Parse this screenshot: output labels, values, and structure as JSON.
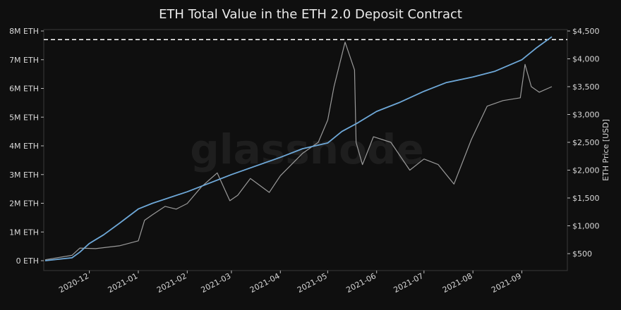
{
  "chart_data": {
    "type": "line",
    "title": "ETH Total Value in the ETH 2.0 Deposit Contract",
    "watermark": "glassnode",
    "grid": false,
    "x_ticks": [
      "2020-12",
      "2021-01",
      "2021-02",
      "2021-03",
      "2021-04",
      "2021-05",
      "2021-06",
      "2021-07",
      "2021-08",
      "2021-09"
    ],
    "y_left": {
      "ylabel": "",
      "ylim": [
        0,
        8
      ],
      "unit": "M ETH",
      "tick_labels": [
        "0 ETH",
        "1M ETH",
        "2M ETH",
        "3M ETH",
        "4M ETH",
        "5M ETH",
        "6M ETH",
        "7M ETH",
        "8M ETH"
      ]
    },
    "y_right": {
      "ylabel": "ETH Price [USD]",
      "ylim": [
        250,
        4500
      ],
      "tick_labels": [
        "$500",
        "$1,000",
        "$1,500",
        "$2,000",
        "$2,500",
        "$3,000",
        "$3,500",
        "$4,000",
        "$4,500"
      ]
    },
    "reference_line": {
      "value": 7.7,
      "axis": "left",
      "style": "dashed",
      "color": "#ffffff"
    },
    "series": [
      {
        "axis": "left",
        "color": "#6ea8d8",
        "x": [
          "2020-11-03",
          "2020-11-20",
          "2020-11-25",
          "2020-12-01",
          "2020-12-10",
          "2020-12-20",
          "2021-01-01",
          "2021-01-10",
          "2021-02-01",
          "2021-03-01",
          "2021-04-01",
          "2021-04-15",
          "2021-05-01",
          "2021-05-10",
          "2021-05-20",
          "2021-06-01",
          "2021-06-15",
          "2021-07-01",
          "2021-07-15",
          "2021-08-01",
          "2021-08-15",
          "2021-09-01",
          "2021-09-10",
          "2021-09-20"
        ],
        "values": [
          0.0,
          0.1,
          0.3,
          0.6,
          0.9,
          1.3,
          1.8,
          2.0,
          2.4,
          3.0,
          3.6,
          3.9,
          4.1,
          4.5,
          4.8,
          5.2,
          5.5,
          5.9,
          6.2,
          6.4,
          6.6,
          7.0,
          7.4,
          7.8
        ]
      },
      {
        "axis": "right",
        "color": "#9a9a9a",
        "x": [
          "2020-11-03",
          "2020-11-20",
          "2020-11-25",
          "2020-12-05",
          "2020-12-20",
          "2021-01-01",
          "2021-01-05",
          "2021-01-10",
          "2021-01-18",
          "2021-01-25",
          "2021-02-01",
          "2021-02-10",
          "2021-02-20",
          "2021-02-28",
          "2021-03-05",
          "2021-03-13",
          "2021-03-25",
          "2021-04-01",
          "2021-04-15",
          "2021-04-25",
          "2021-05-01",
          "2021-05-05",
          "2021-05-12",
          "2021-05-18",
          "2021-05-19",
          "2021-05-23",
          "2021-05-30",
          "2021-06-10",
          "2021-06-22",
          "2021-07-01",
          "2021-07-10",
          "2021-07-20",
          "2021-07-31",
          "2021-08-10",
          "2021-08-20",
          "2021-08-31",
          "2021-09-03",
          "2021-09-07",
          "2021-09-12",
          "2021-09-20"
        ],
        "values": [
          390,
          470,
          600,
          590,
          640,
          730,
          1100,
          1200,
          1350,
          1300,
          1400,
          1700,
          1950,
          1450,
          1550,
          1850,
          1600,
          1900,
          2300,
          2500,
          2900,
          3500,
          4300,
          3800,
          2500,
          2100,
          2600,
          2500,
          2000,
          2200,
          2100,
          1750,
          2550,
          3150,
          3250,
          3300,
          3900,
          3500,
          3400,
          3500
        ]
      }
    ]
  }
}
